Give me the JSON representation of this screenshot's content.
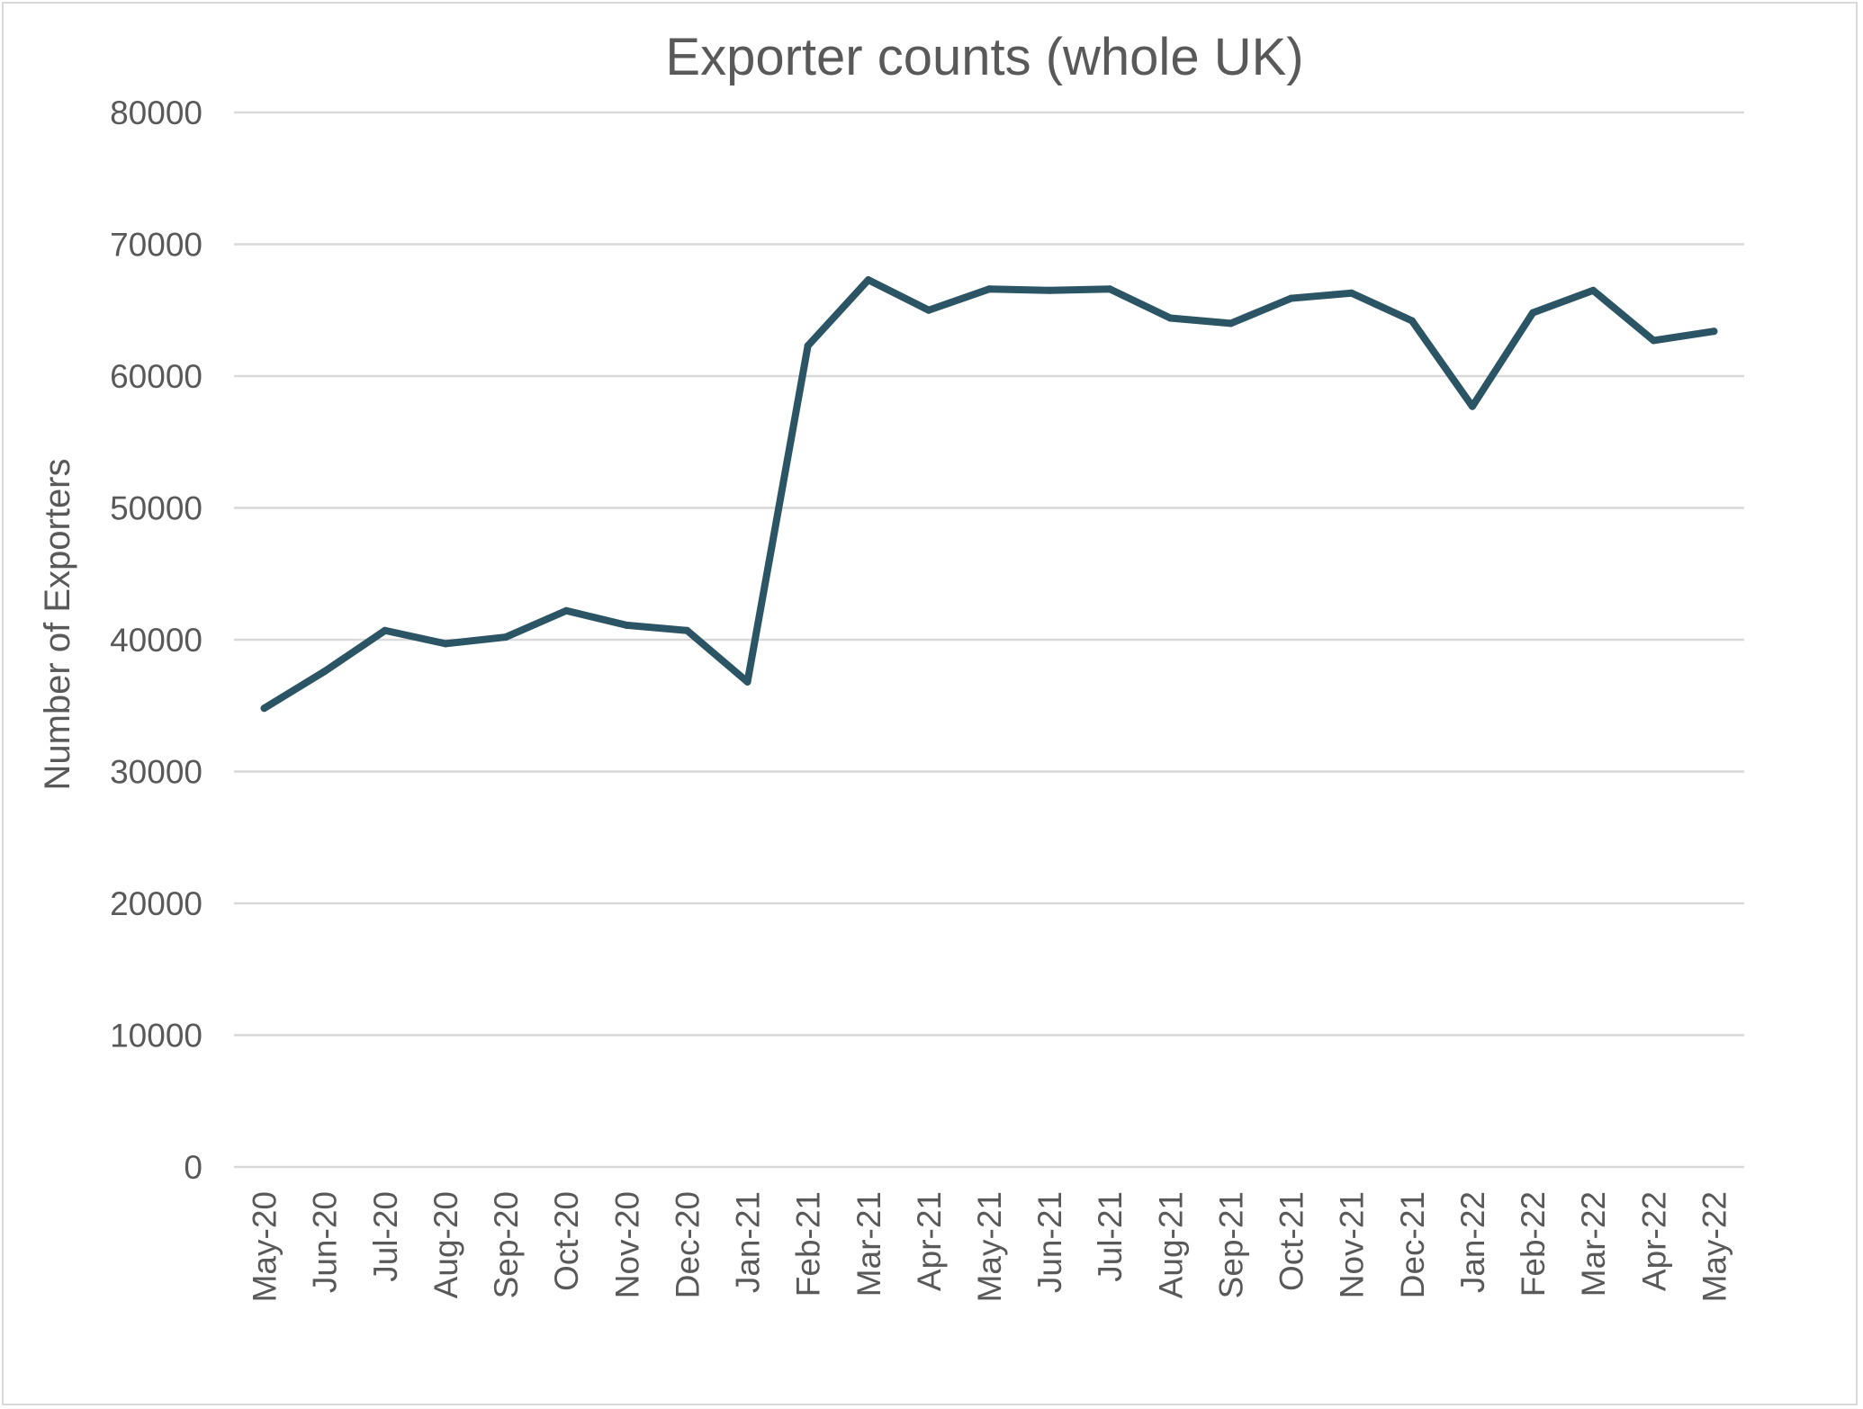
{
  "chart_data": {
    "type": "line",
    "title": "Exporter counts (whole UK)",
    "xlabel": "",
    "ylabel": "Number of Exporters",
    "ylim": [
      0,
      80000
    ],
    "yticks": [
      0,
      10000,
      20000,
      30000,
      40000,
      50000,
      60000,
      70000,
      80000
    ],
    "grid": true,
    "legend": "none",
    "categories": [
      "May-20",
      "Jun-20",
      "Jul-20",
      "Aug-20",
      "Sep-20",
      "Oct-20",
      "Nov-20",
      "Dec-20",
      "Jan-21",
      "Feb-21",
      "Mar-21",
      "Apr-21",
      "May-21",
      "Jun-21",
      "Jul-21",
      "Aug-21",
      "Sep-21",
      "Oct-21",
      "Nov-21",
      "Dec-21",
      "Jan-22",
      "Feb-22",
      "Mar-22",
      "Apr-22",
      "May-22"
    ],
    "series": [
      {
        "values": [
          34800,
          37600,
          40700,
          39700,
          40200,
          42200,
          41100,
          40700,
          36800,
          62300,
          67300,
          65000,
          66600,
          66500,
          66600,
          64400,
          64000,
          65900,
          66300,
          64200,
          57700,
          64800,
          66500,
          62700,
          63400
        ]
      }
    ],
    "colors": {
      "line": "#2b5565",
      "grid": "#d9d9d9",
      "text": "#595959"
    }
  }
}
